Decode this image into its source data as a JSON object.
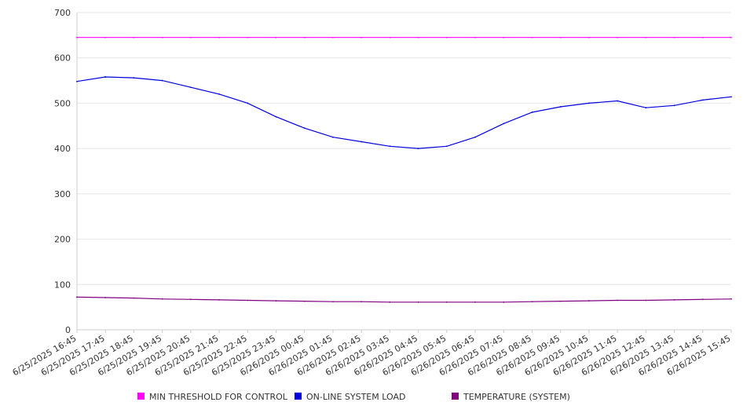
{
  "chart_data": {
    "type": "line",
    "title": "",
    "xlabel": "",
    "ylabel": "",
    "ylim": [
      0,
      700
    ],
    "yticks": [
      0,
      100,
      200,
      300,
      400,
      500,
      600,
      700
    ],
    "grid": true,
    "legend_position": "bottom",
    "categories": [
      "6/25/2025 16:45",
      "6/25/2025 17:45",
      "6/25/2025 18:45",
      "6/25/2025 19:45",
      "6/25/2025 20:45",
      "6/25/2025 21:45",
      "6/25/2025 22:45",
      "6/25/2025 23:45",
      "6/26/2025 00:45",
      "6/26/2025 01:45",
      "6/26/2025 02:45",
      "6/26/2025 03:45",
      "6/26/2025 04:45",
      "6/26/2025 05:45",
      "6/26/2025 06:45",
      "6/26/2025 07:45",
      "6/26/2025 08:45",
      "6/26/2025 09:45",
      "6/26/2025 10:45",
      "6/26/2025 11:45",
      "6/26/2025 12:45",
      "6/26/2025 13:45",
      "6/26/2025 14:45",
      "6/26/2025 15:45"
    ],
    "series": [
      {
        "name": "MIN THRESHOLD FOR CONTROL",
        "color": "#ff00ff",
        "values": [
          645,
          645,
          645,
          645,
          645,
          645,
          645,
          645,
          645,
          645,
          645,
          645,
          645,
          645,
          645,
          645,
          645,
          645,
          645,
          645,
          645,
          645,
          645,
          645
        ]
      },
      {
        "name": "ON-LINE SYSTEM LOAD",
        "color": "#0000dd",
        "values": [
          548,
          558,
          556,
          550,
          535,
          520,
          500,
          470,
          445,
          425,
          415,
          405,
          400,
          405,
          425,
          455,
          480,
          492,
          500,
          505,
          490,
          495,
          507,
          514
        ]
      },
      {
        "name": "TEMPERATURE (SYSTEM)",
        "color": "#800080",
        "values": [
          72,
          71,
          70,
          68,
          67,
          66,
          65,
          64,
          63,
          62,
          62,
          61,
          61,
          61,
          61,
          61,
          62,
          63,
          64,
          65,
          65,
          66,
          67,
          68
        ]
      }
    ]
  },
  "legend": {
    "items": [
      {
        "label": "MIN THRESHOLD FOR CONTROL",
        "color": "#ff00ff"
      },
      {
        "label": "ON-LINE SYSTEM LOAD",
        "color": "#0000dd"
      },
      {
        "label": "TEMPERATURE (SYSTEM)",
        "color": "#800080"
      }
    ]
  }
}
